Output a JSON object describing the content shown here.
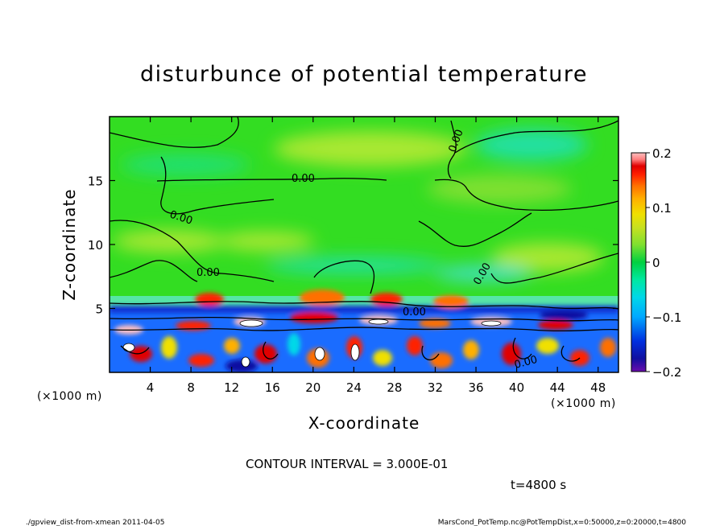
{
  "chart_data": {
    "type": "heatmap",
    "title": "disturbunce of potential temperature",
    "xlabel": "X-coordinate",
    "ylabel": "Z-coordinate",
    "x_unit": "(×1000 m)",
    "y_unit": "(×1000 m)",
    "xlim": [
      0,
      50
    ],
    "ylim": [
      0,
      20
    ],
    "x_ticks": [
      4,
      8,
      12,
      16,
      20,
      24,
      28,
      32,
      36,
      40,
      44,
      48
    ],
    "y_ticks": [
      5,
      10,
      15
    ],
    "colorbar": {
      "range": [
        -0.2,
        0.2
      ],
      "ticks": [
        -0.2,
        -0.1,
        0,
        0.1,
        0.2
      ],
      "tick_labels": [
        "−0.2",
        "−0.1",
        "0",
        "0.1",
        "0.2"
      ],
      "colors": [
        "#6a0dad",
        "#1010a0",
        "#0030e0",
        "#0070ff",
        "#00a8ff",
        "#00d8e8",
        "#00e8a0",
        "#00d040",
        "#30e030",
        "#7fe030",
        "#c8e020",
        "#f0e000",
        "#ffb000",
        "#ff7000",
        "#ff2000",
        "#e00000",
        "#ff8080",
        "#ffc0c0"
      ]
    },
    "contour_labels": [
      "0.00",
      "0.00",
      "0.00",
      "0.00",
      "0.00",
      "0.00",
      "0.00"
    ],
    "contour_interval_text": "CONTOUR INTERVAL = 3.000E-01",
    "time_text": "t=4800 s",
    "footer_left": "./gpview_dist-from-xmean 2011-04-05",
    "footer_right": "MarsCond_PotTemp.nc@PotTempDist,x=0:50000,z=0:20000,t=4800"
  }
}
